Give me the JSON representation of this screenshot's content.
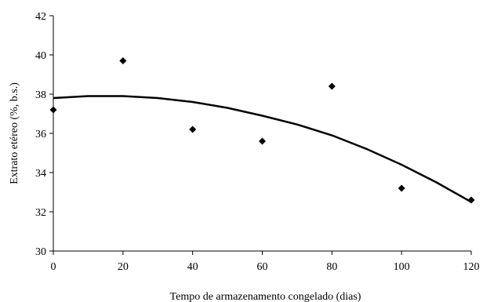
{
  "chart_data": {
    "type": "scatter",
    "xlabel": "Tempo de armazenamento congelado (dias)",
    "ylabel": "Extrato etéreo (%, b.s.)",
    "xlim": [
      0,
      120
    ],
    "ylim": [
      30,
      42
    ],
    "x_ticks": [
      "0",
      "20",
      "40",
      "60",
      "80",
      "100",
      "120"
    ],
    "y_ticks": [
      "30",
      "32",
      "34",
      "36",
      "38",
      "40",
      "42"
    ],
    "grid": false,
    "series": [
      {
        "marker": "diamond",
        "color": "#000000",
        "points": [
          {
            "x": 0,
            "y": 37.2
          },
          {
            "x": 20,
            "y": 39.7
          },
          {
            "x": 40,
            "y": 36.2
          },
          {
            "x": 60,
            "y": 35.6
          },
          {
            "x": 80,
            "y": 38.4
          },
          {
            "x": 100,
            "y": 33.2
          },
          {
            "x": 120,
            "y": 32.6
          }
        ]
      }
    ],
    "trendline": {
      "type": "polynomial",
      "color": "#000000",
      "points": [
        {
          "x": 0,
          "y": 37.8
        },
        {
          "x": 10,
          "y": 37.9
        },
        {
          "x": 20,
          "y": 37.9
        },
        {
          "x": 30,
          "y": 37.8
        },
        {
          "x": 40,
          "y": 37.6
        },
        {
          "x": 50,
          "y": 37.3
        },
        {
          "x": 60,
          "y": 36.9
        },
        {
          "x": 70,
          "y": 36.45
        },
        {
          "x": 80,
          "y": 35.9
        },
        {
          "x": 90,
          "y": 35.2
        },
        {
          "x": 100,
          "y": 34.4
        },
        {
          "x": 110,
          "y": 33.5
        },
        {
          "x": 120,
          "y": 32.5
        }
      ]
    }
  }
}
